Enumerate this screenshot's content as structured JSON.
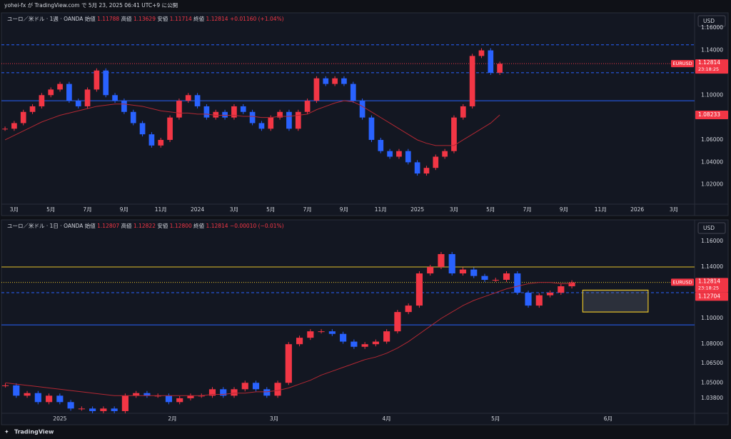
{
  "header": {
    "text": "yohei-fx が TradingView.com で 5月 23, 2025 06:41 UTC+9 に公開"
  },
  "footer": {
    "text": "TradingView"
  },
  "chart_data": [
    {
      "type": "candlestick",
      "title": "ユーロ／米ドル · 1週 · OANDA",
      "ohlc": [
        {
          "label": "始値",
          "value": "1.11788"
        },
        {
          "label": "高値",
          "value": "1.13629"
        },
        {
          "label": "安値",
          "value": "1.11714"
        },
        {
          "label": "終値",
          "value": "1.12814"
        }
      ],
      "change": "+0.01160 (+1.04%)",
      "currency": "USD",
      "symbol_tag": "EURUSD",
      "price_tag": {
        "value": 1.12814,
        "label": "1.12814"
      },
      "countdown": "23:18:25",
      "extra_tag": {
        "value": 1.08233,
        "label": "1.08233"
      },
      "up_color": "#f23645",
      "down_color": "#2962ff",
      "ma_color": "#b22833",
      "x": [
        1.5,
        2,
        2.5,
        3,
        3.5,
        4,
        4.5,
        5,
        5.5,
        6,
        6.5,
        7,
        7.5,
        8,
        8.5,
        9,
        9.5,
        10,
        10.5,
        11,
        11.5,
        12,
        12.5,
        13,
        13.5,
        14,
        14.5,
        15,
        15.5,
        16,
        16.5,
        17,
        17.5,
        18,
        18.5,
        19,
        19.5,
        20,
        20.5,
        21,
        21.5,
        22,
        22.5,
        23,
        23.5,
        24,
        24.5,
        25,
        25.5,
        26,
        26.5,
        27,
        27.5,
        28,
        28.5
      ],
      "values": [
        1.07,
        1.075,
        1.085,
        1.09,
        1.1,
        1.105,
        1.11,
        1.095,
        1.09,
        1.105,
        1.122,
        1.1,
        1.095,
        1.085,
        1.075,
        1.065,
        1.055,
        1.06,
        1.08,
        1.095,
        1.1,
        1.09,
        1.08,
        1.085,
        1.08,
        1.09,
        1.085,
        1.075,
        1.07,
        1.08,
        1.085,
        1.07,
        1.085,
        1.095,
        1.115,
        1.11,
        1.115,
        1.11,
        1.095,
        1.08,
        1.06,
        1.05,
        1.045,
        1.05,
        1.04,
        1.03,
        1.035,
        1.045,
        1.05,
        1.08,
        1.09,
        1.135,
        1.14,
        1.12,
        1.128
      ],
      "ma": [
        1.06,
        1.064,
        1.068,
        1.072,
        1.076,
        1.079,
        1.082,
        1.084,
        1.086,
        1.088,
        1.09,
        1.091,
        1.092,
        1.092,
        1.091,
        1.09,
        1.088,
        1.086,
        1.085,
        1.084,
        1.084,
        1.083,
        1.083,
        1.082,
        1.082,
        1.082,
        1.081,
        1.081,
        1.08,
        1.08,
        1.081,
        1.081,
        1.082,
        1.083,
        1.087,
        1.09,
        1.093,
        1.095,
        1.094,
        1.09,
        1.085,
        1.08,
        1.075,
        1.07,
        1.065,
        1.06,
        1.057,
        1.055,
        1.055,
        1.055,
        1.06,
        1.065,
        1.07,
        1.075,
        1.08233
      ],
      "xlim": [
        1.42,
        39.13
      ],
      "ylim": [
        1.0026,
        1.1735
      ],
      "xticks": [
        {
          "value": 2,
          "label": "3月"
        },
        {
          "value": 4,
          "label": "5月"
        },
        {
          "value": 6,
          "label": "7月"
        },
        {
          "value": 8,
          "label": "9月"
        },
        {
          "value": 10,
          "label": "11月"
        },
        {
          "value": 12,
          "label": "2024"
        },
        {
          "value": 14,
          "label": "3月"
        },
        {
          "value": 16,
          "label": "5月"
        },
        {
          "value": 18,
          "label": "7月"
        },
        {
          "value": 20,
          "label": "9月"
        },
        {
          "value": 22,
          "label": "11月"
        },
        {
          "value": 24,
          "label": "2025"
        },
        {
          "value": 26,
          "label": "3月"
        },
        {
          "value": 28,
          "label": "5月"
        },
        {
          "value": 30,
          "label": "7月"
        },
        {
          "value": 32,
          "label": "9月"
        },
        {
          "value": 34,
          "label": "11月"
        },
        {
          "value": 36,
          "label": "2026"
        },
        {
          "value": 38,
          "label": "3月"
        }
      ],
      "yticks": [
        {
          "value": 1.16,
          "label": "1.16000"
        },
        {
          "value": 1.14,
          "label": "1.14000"
        },
        {
          "value": 1.1,
          "label": "1.10000"
        },
        {
          "value": 1.06,
          "label": "1.06000"
        },
        {
          "value": 1.04,
          "label": "1.04000"
        },
        {
          "value": 1.02,
          "label": "1.02000"
        }
      ],
      "levels": [
        {
          "value": 1.145,
          "color": "#2962ff",
          "style": "dashed"
        },
        {
          "value": 1.12,
          "color": "#2962ff",
          "style": "dashed"
        },
        {
          "value": 1.095,
          "color": "#2962ff",
          "style": "solid"
        },
        {
          "value": 1.12814,
          "color": "#f23645",
          "style": "dotted"
        }
      ]
    },
    {
      "type": "candlestick",
      "title": "ユーロ／米ドル · 1日 · OANDA",
      "ohlc": [
        {
          "label": "始値",
          "value": "1.12807"
        },
        {
          "label": "高値",
          "value": "1.12822"
        },
        {
          "label": "安値",
          "value": "1.12800"
        },
        {
          "label": "終値",
          "value": "1.12814"
        }
      ],
      "change": "−0.00010 (−0.01%)",
      "currency": "USD",
      "symbol_tag": "EURUSD",
      "price_tag": {
        "value": 1.12814,
        "label": "1.12814"
      },
      "countdown": "23:18:25",
      "extra_tag": {
        "value": 1.12704,
        "label": "1.12704"
      },
      "up_color": "#f23645",
      "down_color": "#2962ff",
      "ma_color": "#b22833",
      "x": [
        -15,
        -12,
        -9,
        -6,
        -3,
        0,
        3,
        6,
        9,
        12,
        15,
        18,
        21,
        24,
        27,
        30,
        33,
        36,
        39,
        42,
        45,
        48,
        51,
        54,
        57,
        60,
        63,
        66,
        69,
        72,
        75,
        78,
        81,
        84,
        87,
        90,
        93,
        96,
        99,
        102,
        105,
        108,
        111,
        114,
        117,
        120,
        123,
        126,
        129,
        132,
        135,
        138,
        141
      ],
      "values": [
        1.048,
        1.04,
        1.042,
        1.035,
        1.04,
        1.035,
        1.03,
        1.03,
        1.028,
        1.03,
        1.028,
        1.04,
        1.042,
        1.04,
        1.04,
        1.035,
        1.038,
        1.04,
        1.04,
        1.045,
        1.04,
        1.045,
        1.05,
        1.045,
        1.04,
        1.05,
        1.08,
        1.085,
        1.09,
        1.09,
        1.088,
        1.082,
        1.078,
        1.08,
        1.082,
        1.09,
        1.105,
        1.11,
        1.135,
        1.14,
        1.15,
        1.135,
        1.138,
        1.133,
        1.13,
        1.13,
        1.135,
        1.12,
        1.11,
        1.118,
        1.12,
        1.125,
        1.128
      ],
      "ma": [
        1.05,
        1.049,
        1.048,
        1.047,
        1.046,
        1.045,
        1.044,
        1.043,
        1.042,
        1.041,
        1.04,
        1.04,
        1.04,
        1.04,
        1.04,
        1.04,
        1.04,
        1.04,
        1.04,
        1.041,
        1.041,
        1.042,
        1.042,
        1.043,
        1.043,
        1.044,
        1.046,
        1.049,
        1.052,
        1.056,
        1.059,
        1.062,
        1.065,
        1.068,
        1.07,
        1.073,
        1.077,
        1.082,
        1.088,
        1.094,
        1.1,
        1.105,
        1.11,
        1.114,
        1.117,
        1.12,
        1.123,
        1.125,
        1.127,
        1.128,
        1.128,
        1.127,
        1.127
      ],
      "xlim": [
        -15.5,
        174.8
      ],
      "ylim": [
        1.0263,
        1.1766
      ],
      "xticks": [
        {
          "value": 0,
          "label": "2025"
        },
        {
          "value": 31,
          "label": "2月"
        },
        {
          "value": 59,
          "label": "3月"
        },
        {
          "value": 90,
          "label": "4月"
        },
        {
          "value": 120,
          "label": "5月"
        },
        {
          "value": 151,
          "label": "6月"
        }
      ],
      "yticks": [
        {
          "value": 1.16,
          "label": "1.16000"
        },
        {
          "value": 1.14,
          "label": "1.14000"
        },
        {
          "value": 1.1,
          "label": "1.10000"
        },
        {
          "value": 1.08,
          "label": "1.08000"
        },
        {
          "value": 1.065,
          "label": "1.06500"
        },
        {
          "value": 1.05,
          "label": "1.05000"
        },
        {
          "value": 1.038,
          "label": "1.03800"
        }
      ],
      "levels": [
        {
          "value": 1.14,
          "color": "#e6c229",
          "style": "solid"
        },
        {
          "value": 1.128,
          "color": "#e6c229",
          "style": "dotted"
        },
        {
          "value": 1.12,
          "color": "#2962ff",
          "style": "dashed"
        },
        {
          "value": 1.095,
          "color": "#2962ff",
          "style": "solid"
        }
      ],
      "zone": {
        "x": [
          144,
          162
        ],
        "y": [
          1.105,
          1.122
        ],
        "color": "#e6c229"
      }
    }
  ]
}
